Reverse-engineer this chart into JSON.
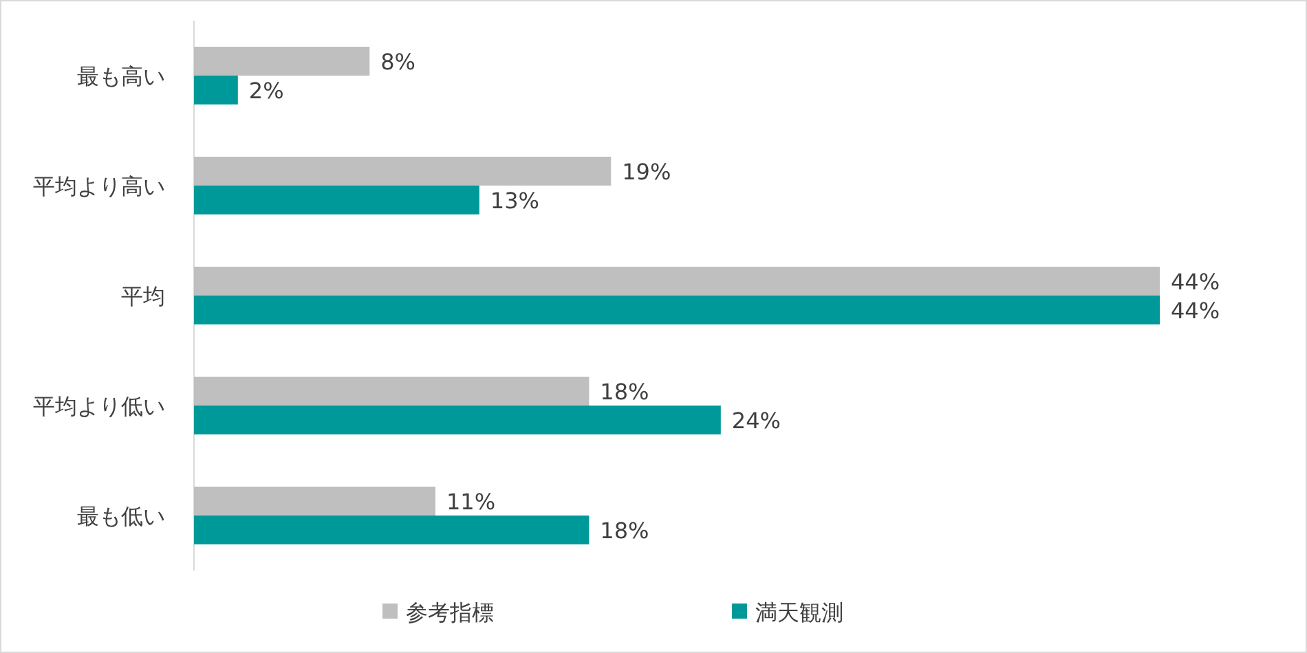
{
  "chart_data": {
    "type": "bar",
    "orientation": "horizontal",
    "legend": "bottom",
    "categories": [
      "最も高い",
      "平均より高い",
      "平均",
      "平均より低い",
      "最も低い"
    ],
    "series": [
      {
        "name": "参考指標",
        "color": "#bfbfbf",
        "values": [
          8,
          19,
          44,
          18,
          11
        ],
        "value_labels": [
          "8%",
          "19%",
          "44%",
          "18%",
          "11%"
        ]
      },
      {
        "name": "満天観測",
        "color": "#009999",
        "values": [
          2,
          13,
          44,
          24,
          18
        ],
        "value_labels": [
          "2%",
          "13%",
          "44%",
          "24%",
          "18%"
        ]
      }
    ]
  }
}
